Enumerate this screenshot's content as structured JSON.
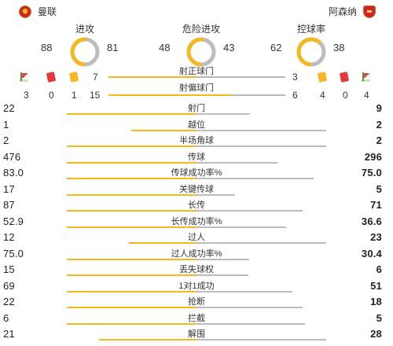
{
  "teams": {
    "home": "曼联",
    "away": "阿森纳"
  },
  "rings": [
    {
      "title": "进攻",
      "home": "88",
      "away": "81",
      "home_share": 0.52
    },
    {
      "title": "危险进攻",
      "home": "48",
      "away": "43",
      "home_share": 0.53
    },
    {
      "title": "控球率",
      "home": "62",
      "away": "38",
      "home_share": 0.62
    }
  ],
  "shots_on": {
    "label": "射正球门",
    "home": "7",
    "away": "3"
  },
  "shots_off": {
    "label": "射偏球门"
  },
  "events": {
    "home": {
      "corners": "3",
      "red": "0",
      "yellow": "1",
      "shots_off": "15"
    },
    "away": {
      "shots_off": "6",
      "yellow": "4",
      "red": "0",
      "corners": "4"
    }
  },
  "stats": [
    {
      "label": "射门",
      "home": "22",
      "away": "9"
    },
    {
      "label": "越位",
      "home": "1",
      "away": "2"
    },
    {
      "label": "半场角球",
      "home": "2",
      "away": "2"
    },
    {
      "label": "传球",
      "home": "476",
      "away": "296"
    },
    {
      "label": "传球成功率%",
      "home": "83.0",
      "away": "75.0"
    },
    {
      "label": "关键传球",
      "home": "17",
      "away": "5"
    },
    {
      "label": "长传",
      "home": "87",
      "away": "71"
    },
    {
      "label": "长传成功率%",
      "home": "52.9",
      "away": "36.6"
    },
    {
      "label": "过人",
      "home": "12",
      "away": "23"
    },
    {
      "label": "过人成功率%",
      "home": "75.0",
      "away": "30.4"
    },
    {
      "label": "丢失球权",
      "home": "15",
      "away": "6"
    },
    {
      "label": "1对1成功",
      "home": "69",
      "away": "51"
    },
    {
      "label": "抢断",
      "home": "22",
      "away": "18"
    },
    {
      "label": "拦截",
      "home": "6",
      "away": "5"
    },
    {
      "label": "解围",
      "home": "21",
      "away": "28"
    }
  ],
  "colors": {
    "home": "#f5b820",
    "away": "#bdbdbd"
  }
}
